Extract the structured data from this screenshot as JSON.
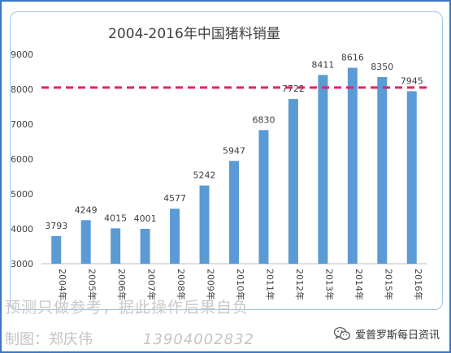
{
  "chart_data": {
    "type": "bar",
    "title": "2004-2016年中国猪料销量",
    "categories": [
      "2004年",
      "2005年",
      "2006年",
      "2007年",
      "2008年",
      "2009年",
      "2010年",
      "2011年",
      "2012年",
      "2013年",
      "2014年",
      "2015年",
      "2016年"
    ],
    "values": [
      3793,
      4249,
      4015,
      4001,
      4577,
      5242,
      5947,
      6830,
      7722,
      8411,
      8616,
      8350,
      7945
    ],
    "yticks": [
      3000,
      4000,
      5000,
      6000,
      7000,
      8000,
      9000
    ],
    "ylim": [
      3000,
      9000
    ],
    "reference_line": 8050,
    "xlabel": "",
    "ylabel": "",
    "grid": false,
    "colors": {
      "bar": "#5b9bd5",
      "reference_line": "#e3216c",
      "axis": "#bfbfbf",
      "text": "#404040"
    }
  },
  "footer": {
    "disclaimer": "预测只做参考，据此操作后果自负",
    "credit_prefix": "制图：郑庆伟",
    "phone": "13904002832",
    "brand_name": "爱普罗斯每日资讯",
    "brand_icon": "wechat-icon"
  },
  "colors": {
    "frame": "#3a78c6",
    "panel_border": "#9ec3e6"
  }
}
